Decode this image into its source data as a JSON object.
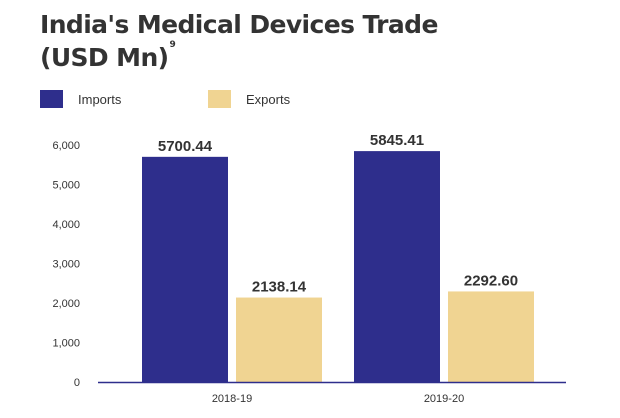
{
  "title_line1": "India's Medical Devices Trade",
  "title_line2": "(USD Mn)",
  "title_superscript": "9",
  "legend": [
    {
      "label": "Imports",
      "color": "#2e2e8c"
    },
    {
      "label": "Exports",
      "color": "#f0d492"
    }
  ],
  "chart_data": {
    "type": "bar",
    "categories": [
      "2018-19",
      "2019-20"
    ],
    "series": [
      {
        "name": "Imports",
        "values": [
          5700.44,
          5845.41
        ],
        "color": "#2e2e8c"
      },
      {
        "name": "Exports",
        "values": [
          2138.14,
          2292.6
        ],
        "color": "#f0d492"
      }
    ],
    "data_labels": [
      [
        "5700.44",
        "5845.41"
      ],
      [
        "2138.14",
        "2292.60"
      ]
    ],
    "ylim": [
      0,
      6000
    ],
    "yticks": [
      0,
      1000,
      2000,
      3000,
      4000,
      5000,
      6000
    ],
    "ytick_labels": [
      "0",
      "1,000",
      "2,000",
      "3,000",
      "4,000",
      "5,000",
      "6,000"
    ],
    "axis_color": "#2e2e8c",
    "grid": false,
    "legend_position": "top-left",
    "xlabel": "",
    "ylabel": ""
  }
}
